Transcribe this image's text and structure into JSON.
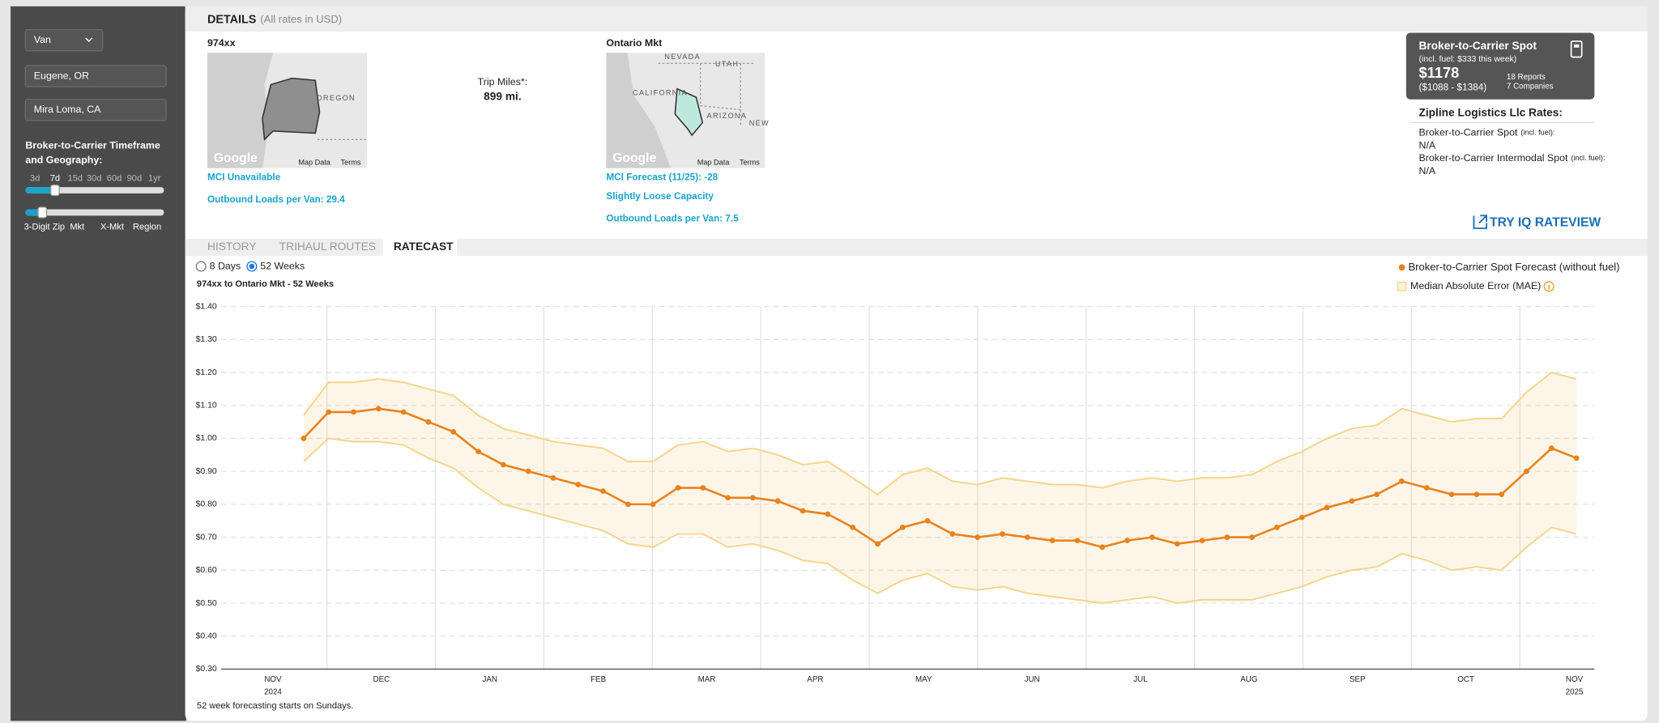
{
  "sidebar": {
    "equipment": "Van",
    "origin": "Eugene, OR",
    "destination": "Mira Loma, CA",
    "timeframe_label": [
      "Broker-to-Carrier Timeframe",
      "and Geography:"
    ],
    "timeframes": [
      "3d",
      "7d",
      "15d",
      "30d",
      "60d",
      "90d",
      "1yr"
    ],
    "geographies": [
      "3-Digit Zip",
      "Mkt",
      "X-Mkt",
      "Region"
    ]
  },
  "details": {
    "title": "DETAILS",
    "subtitle": "(All rates in USD)",
    "map": {
      "logo": "Google",
      "data": "Map Data",
      "terms": "Terms"
    },
    "origin": {
      "name": "974xx",
      "map_labels": [
        "OREGON"
      ],
      "mci": "MCI Unavailable",
      "outbound": "Outbound Loads per Van: 29.4"
    },
    "trip_miles_label": "Trip Miles*:",
    "trip_miles": "899 mi.",
    "destination": {
      "name": "Ontario Mkt",
      "map_labels": [
        "NEVADA",
        "UTAH",
        "CALIFORNIA",
        "ARIZONA",
        "NEW"
      ],
      "mci": "MCI Forecast (11/25):  -28",
      "capacity": "Slightly Loose Capacity",
      "outbound": "Outbound Loads per Van: 7.5"
    }
  },
  "rate_card": {
    "title": "Broker-to-Carrier Spot",
    "fuel": "(incl. fuel: $333 this week)",
    "rate": "$1178",
    "range": "($1088 - $1384)",
    "reports": "18 Reports",
    "companies": "7 Companies"
  },
  "company_rates": {
    "title": "Zipline Logistics Llc Rates:",
    "items": [
      {
        "label": "Broker-to-Carrier Spot",
        "note": "(incl. fuel):",
        "value": "N/A"
      },
      {
        "label": "Broker-to-Carrier Intermodal Spot",
        "note": "(incl. fuel):",
        "value": "N/A"
      }
    ],
    "link": "TRY IQ RATEVIEW"
  },
  "tabs": [
    "HISTORY",
    "TRIHAUL ROUTES",
    "RATECAST"
  ],
  "options": [
    "8 Days",
    "52 Weeks"
  ],
  "chart_data": {
    "type": "line",
    "title": "974xx to Ontario Mkt - 52 Weeks",
    "note": "52 week forecasting starts on Sundays.",
    "x_labels": [
      {
        "month": "NOV",
        "year": "2024"
      },
      {
        "month": "DEC"
      },
      {
        "month": "JAN"
      },
      {
        "month": "FEB"
      },
      {
        "month": "MAR"
      },
      {
        "month": "APR"
      },
      {
        "month": "MAY"
      },
      {
        "month": "JUN"
      },
      {
        "month": "JUL"
      },
      {
        "month": "AUG"
      },
      {
        "month": "SEP"
      },
      {
        "month": "OCT"
      },
      {
        "month": "NOV",
        "year": "2025"
      }
    ],
    "ylim": [
      0.3,
      1.4
    ],
    "yticks": [
      {
        "value": 0.3,
        "label": "$0.30"
      },
      {
        "value": 0.4,
        "label": "$0.40"
      },
      {
        "value": 0.5,
        "label": "$0.50"
      },
      {
        "value": 0.6,
        "label": "$0.60"
      },
      {
        "value": 0.7,
        "label": "$0.70"
      },
      {
        "value": 0.8,
        "label": "$0.80"
      },
      {
        "value": 0.9,
        "label": "$0.90"
      },
      {
        "value": 1.0,
        "label": "$1.00"
      },
      {
        "value": 1.1,
        "label": "$1.10"
      },
      {
        "value": 1.2,
        "label": "$1.20"
      },
      {
        "value": 1.3,
        "label": "$1.30"
      },
      {
        "value": 1.4,
        "label": "$1.40"
      }
    ],
    "grid": true,
    "legend": "top-right",
    "series": [
      {
        "name": "Broker-to-Carrier Spot Forecast (without fuel)",
        "color": "#e8821e",
        "values": [
          1.0,
          1.08,
          1.08,
          1.09,
          1.08,
          1.05,
          1.02,
          0.96,
          0.92,
          0.9,
          0.88,
          0.86,
          0.84,
          0.8,
          0.8,
          0.85,
          0.85,
          0.82,
          0.82,
          0.81,
          0.78,
          0.77,
          0.73,
          0.68,
          0.73,
          0.75,
          0.71,
          0.7,
          0.71,
          0.7,
          0.69,
          0.69,
          0.67,
          0.69,
          0.7,
          0.68,
          0.69,
          0.7,
          0.7,
          0.73,
          0.76,
          0.79,
          0.81,
          0.83,
          0.87,
          0.85,
          0.83,
          0.83,
          0.83,
          0.9,
          0.97,
          0.94
        ]
      }
    ],
    "band": {
      "name": "Median Absolute Error (MAE)",
      "color": "#f5d48a",
      "upper": [
        1.07,
        1.17,
        1.17,
        1.18,
        1.17,
        1.15,
        1.13,
        1.07,
        1.03,
        1.01,
        0.99,
        0.98,
        0.97,
        0.93,
        0.93,
        0.98,
        0.99,
        0.96,
        0.97,
        0.95,
        0.92,
        0.93,
        0.88,
        0.83,
        0.89,
        0.91,
        0.87,
        0.86,
        0.88,
        0.87,
        0.86,
        0.86,
        0.85,
        0.87,
        0.88,
        0.87,
        0.88,
        0.88,
        0.89,
        0.93,
        0.96,
        1.0,
        1.03,
        1.04,
        1.09,
        1.07,
        1.05,
        1.06,
        1.06,
        1.14,
        1.2,
        1.18
      ],
      "lower": [
        0.93,
        1.0,
        0.99,
        0.99,
        0.98,
        0.94,
        0.91,
        0.85,
        0.8,
        0.78,
        0.76,
        0.74,
        0.72,
        0.68,
        0.67,
        0.71,
        0.71,
        0.67,
        0.68,
        0.66,
        0.63,
        0.62,
        0.57,
        0.53,
        0.57,
        0.59,
        0.55,
        0.54,
        0.55,
        0.53,
        0.52,
        0.51,
        0.5,
        0.51,
        0.52,
        0.5,
        0.51,
        0.51,
        0.51,
        0.53,
        0.55,
        0.58,
        0.6,
        0.61,
        0.65,
        0.63,
        0.6,
        0.61,
        0.6,
        0.67,
        0.73,
        0.71
      ]
    }
  }
}
